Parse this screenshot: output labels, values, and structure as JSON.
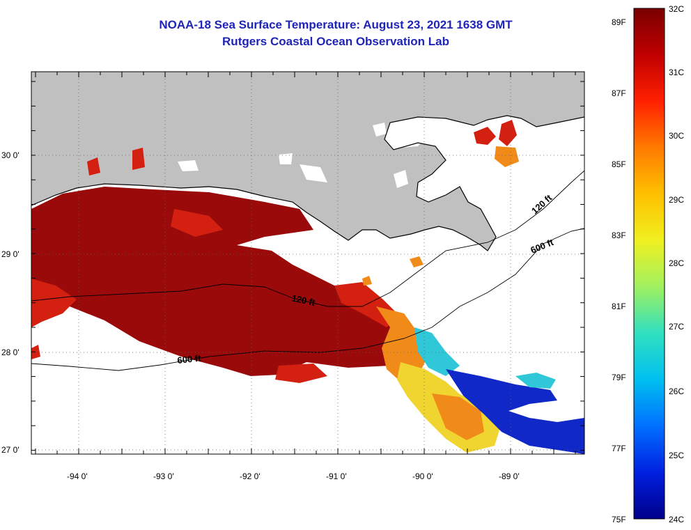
{
  "header": {
    "title": "NOAA-18 Sea Surface Temperature:  August 23, 2021 1638 GMT",
    "subtitle": "Rutgers Coastal Ocean Observation Lab"
  },
  "map": {
    "lon_labels": [
      "-94 0'",
      "-93 0'",
      "-92 0'",
      "-91 0'",
      "-90 0'",
      "-89 0'"
    ],
    "lat_labels": [
      "30 0'",
      "29 0'",
      "28 0'",
      "27 0'"
    ],
    "contour_labels": {
      "c600_west": "600 ft",
      "c120_mid": "120 ft",
      "c120_east": "120 ft",
      "c600_east": "600 ft"
    },
    "colors": {
      "land": "#c0c0c0",
      "no_data": "#ffffff",
      "hot": "#9a0a0a",
      "warm": "#d42010",
      "mid": "#f08a18",
      "yellow": "#f0d530",
      "cool": "#30c8d8",
      "cold": "#1028c8"
    }
  },
  "colorbar": {
    "celsius_labels": [
      "32C",
      "31C",
      "30C",
      "29C",
      "28C",
      "27C",
      "26C",
      "25C",
      "24C"
    ],
    "fahrenheit_labels": [
      "89F",
      "87F",
      "85F",
      "83F",
      "81F",
      "79F",
      "77F",
      "75F"
    ],
    "gradient": [
      "#7a0000",
      "#c00000",
      "#ff2000",
      "#ff7a00",
      "#ffc000",
      "#f0f020",
      "#a0f060",
      "#30e0c0",
      "#00c0f0",
      "#0070ff",
      "#0020e0",
      "#00008a"
    ]
  }
}
